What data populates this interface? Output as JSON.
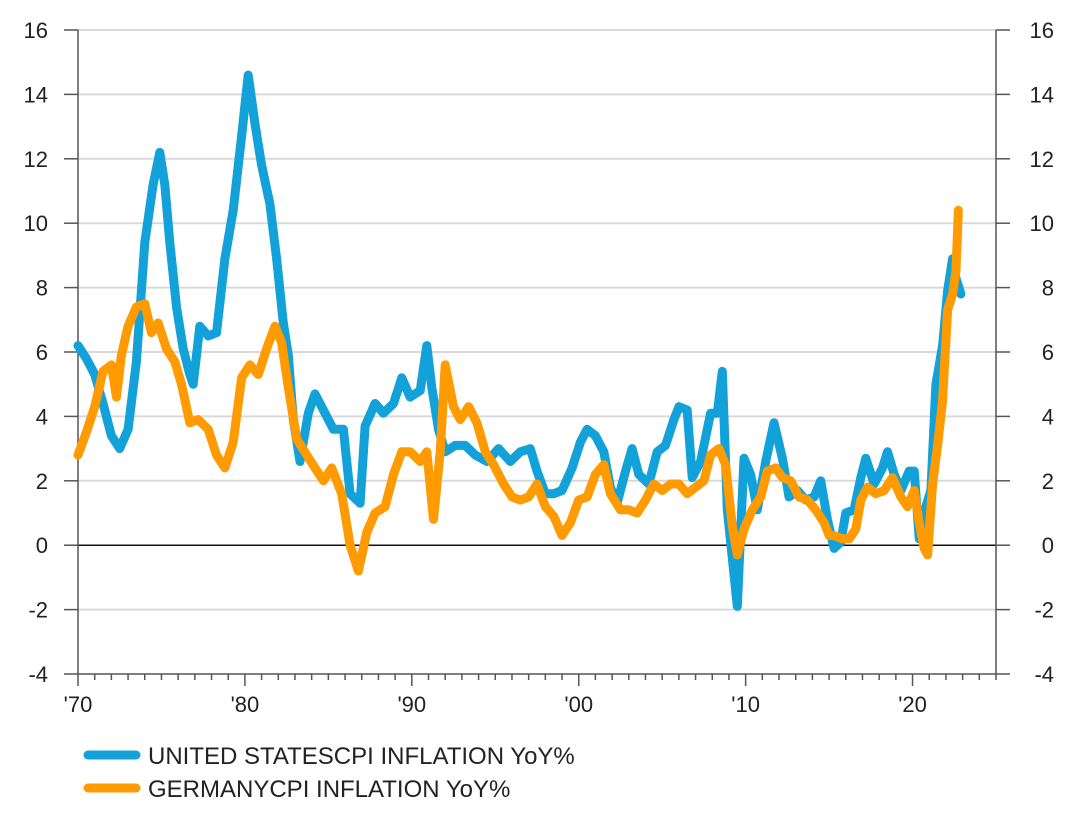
{
  "chart_data": {
    "type": "line",
    "title": "",
    "xlabel": "",
    "ylabel": "",
    "xlim": [
      1970,
      2025
    ],
    "ylim": [
      -4,
      16
    ],
    "x_ticks": [
      {
        "value": 1970,
        "label": "'70"
      },
      {
        "value": 1980,
        "label": "'80"
      },
      {
        "value": 1990,
        "label": "'90"
      },
      {
        "value": 2000,
        "label": "'00"
      },
      {
        "value": 2010,
        "label": "'10"
      },
      {
        "value": 2020,
        "label": "'20"
      }
    ],
    "y_ticks": [
      {
        "value": 16,
        "label": "16"
      },
      {
        "value": 14,
        "label": "14"
      },
      {
        "value": 12,
        "label": "12"
      },
      {
        "value": 10,
        "label": "10"
      },
      {
        "value": 8,
        "label": "8"
      },
      {
        "value": 6,
        "label": "6"
      },
      {
        "value": 4,
        "label": "4"
      },
      {
        "value": 2,
        "label": "2"
      },
      {
        "value": 0,
        "label": "0"
      },
      {
        "value": -2,
        "label": "-2"
      },
      {
        "value": -4,
        "label": "-4"
      }
    ],
    "grid": true,
    "zero_line": true,
    "legend_position": "bottom-left",
    "series": [
      {
        "name": "UNITED STATESCPI INFLATION YoY%",
        "color": "#12a1d8",
        "points": [
          [
            1970.0,
            6.2
          ],
          [
            1970.5,
            5.8
          ],
          [
            1971.0,
            5.3
          ],
          [
            1971.5,
            4.4
          ],
          [
            1972.0,
            3.4
          ],
          [
            1972.5,
            3.0
          ],
          [
            1973.0,
            3.6
          ],
          [
            1973.5,
            5.7
          ],
          [
            1974.0,
            9.4
          ],
          [
            1974.5,
            11.2
          ],
          [
            1974.9,
            12.2
          ],
          [
            1975.2,
            11.2
          ],
          [
            1975.5,
            9.4
          ],
          [
            1975.9,
            7.4
          ],
          [
            1976.3,
            6.1
          ],
          [
            1976.7,
            5.3
          ],
          [
            1976.9,
            5.0
          ],
          [
            1977.3,
            6.8
          ],
          [
            1977.8,
            6.5
          ],
          [
            1978.3,
            6.6
          ],
          [
            1978.8,
            8.9
          ],
          [
            1979.3,
            10.4
          ],
          [
            1979.8,
            12.7
          ],
          [
            1980.2,
            14.6
          ],
          [
            1980.6,
            13.1
          ],
          [
            1981.0,
            11.8
          ],
          [
            1981.5,
            10.6
          ],
          [
            1981.9,
            8.9
          ],
          [
            1982.3,
            6.9
          ],
          [
            1982.6,
            5.9
          ],
          [
            1982.9,
            3.9
          ],
          [
            1983.3,
            2.6
          ],
          [
            1983.8,
            4.1
          ],
          [
            1984.2,
            4.7
          ],
          [
            1984.8,
            4.1
          ],
          [
            1985.3,
            3.6
          ],
          [
            1985.9,
            3.6
          ],
          [
            1986.3,
            1.6
          ],
          [
            1986.9,
            1.3
          ],
          [
            1987.2,
            3.7
          ],
          [
            1987.8,
            4.4
          ],
          [
            1988.3,
            4.1
          ],
          [
            1988.9,
            4.4
          ],
          [
            1989.4,
            5.2
          ],
          [
            1989.9,
            4.6
          ],
          [
            1990.5,
            4.8
          ],
          [
            1990.9,
            6.2
          ],
          [
            1991.2,
            4.9
          ],
          [
            1991.6,
            3.6
          ],
          [
            1992.0,
            2.9
          ],
          [
            1992.6,
            3.1
          ],
          [
            1993.2,
            3.1
          ],
          [
            1993.8,
            2.8
          ],
          [
            1994.5,
            2.6
          ],
          [
            1995.2,
            3.0
          ],
          [
            1995.9,
            2.6
          ],
          [
            1996.5,
            2.9
          ],
          [
            1997.1,
            3.0
          ],
          [
            1997.5,
            2.3
          ],
          [
            1998.0,
            1.6
          ],
          [
            1998.5,
            1.6
          ],
          [
            1999.0,
            1.7
          ],
          [
            1999.6,
            2.4
          ],
          [
            2000.1,
            3.2
          ],
          [
            2000.5,
            3.6
          ],
          [
            2001.0,
            3.4
          ],
          [
            2001.5,
            2.9
          ],
          [
            2001.9,
            1.8
          ],
          [
            2002.3,
            1.3
          ],
          [
            2002.8,
            2.3
          ],
          [
            2003.2,
            3.0
          ],
          [
            2003.6,
            2.2
          ],
          [
            2004.2,
            1.9
          ],
          [
            2004.7,
            2.9
          ],
          [
            2005.2,
            3.1
          ],
          [
            2005.7,
            3.9
          ],
          [
            2006.0,
            4.3
          ],
          [
            2006.5,
            4.2
          ],
          [
            2006.8,
            2.1
          ],
          [
            2007.3,
            2.6
          ],
          [
            2007.9,
            4.1
          ],
          [
            2008.3,
            4.1
          ],
          [
            2008.6,
            5.4
          ],
          [
            2008.9,
            1.1
          ],
          [
            2009.2,
            -0.4
          ],
          [
            2009.5,
            -1.9
          ],
          [
            2009.9,
            2.7
          ],
          [
            2010.3,
            2.2
          ],
          [
            2010.7,
            1.1
          ],
          [
            2011.2,
            2.6
          ],
          [
            2011.7,
            3.8
          ],
          [
            2012.2,
            2.7
          ],
          [
            2012.6,
            1.5
          ],
          [
            2013.1,
            1.7
          ],
          [
            2013.6,
            1.4
          ],
          [
            2014.1,
            1.5
          ],
          [
            2014.5,
            2.0
          ],
          [
            2014.9,
            0.8
          ],
          [
            2015.3,
            -0.1
          ],
          [
            2015.7,
            0.1
          ],
          [
            2016.0,
            1.0
          ],
          [
            2016.5,
            1.1
          ],
          [
            2016.9,
            2.1
          ],
          [
            2017.2,
            2.7
          ],
          [
            2017.7,
            1.9
          ],
          [
            2018.2,
            2.4
          ],
          [
            2018.5,
            2.9
          ],
          [
            2018.9,
            2.2
          ],
          [
            2019.3,
            1.7
          ],
          [
            2019.8,
            2.3
          ],
          [
            2020.1,
            2.3
          ],
          [
            2020.4,
            0.2
          ],
          [
            2020.8,
            1.2
          ],
          [
            2021.1,
            1.7
          ],
          [
            2021.4,
            5.0
          ],
          [
            2021.8,
            6.2
          ],
          [
            2022.1,
            7.9
          ],
          [
            2022.4,
            8.9
          ],
          [
            2022.6,
            8.3
          ],
          [
            2022.9,
            7.8
          ]
        ]
      },
      {
        "name": "GERMANYCPI INFLATION YoY%",
        "color": "#ff9b00",
        "points": [
          [
            1970.0,
            2.8
          ],
          [
            1970.5,
            3.5
          ],
          [
            1971.0,
            4.3
          ],
          [
            1971.5,
            5.4
          ],
          [
            1972.0,
            5.6
          ],
          [
            1972.3,
            4.6
          ],
          [
            1972.6,
            5.9
          ],
          [
            1973.0,
            6.8
          ],
          [
            1973.5,
            7.4
          ],
          [
            1974.0,
            7.5
          ],
          [
            1974.4,
            6.6
          ],
          [
            1974.8,
            6.9
          ],
          [
            1975.3,
            6.1
          ],
          [
            1975.8,
            5.7
          ],
          [
            1976.2,
            5.0
          ],
          [
            1976.7,
            3.8
          ],
          [
            1977.2,
            3.9
          ],
          [
            1977.8,
            3.6
          ],
          [
            1978.3,
            2.8
          ],
          [
            1978.8,
            2.4
          ],
          [
            1979.3,
            3.2
          ],
          [
            1979.8,
            5.2
          ],
          [
            1980.3,
            5.6
          ],
          [
            1980.8,
            5.3
          ],
          [
            1981.3,
            6.1
          ],
          [
            1981.8,
            6.8
          ],
          [
            1982.2,
            6.3
          ],
          [
            1982.6,
            4.9
          ],
          [
            1983.1,
            3.3
          ],
          [
            1983.7,
            2.8
          ],
          [
            1984.2,
            2.4
          ],
          [
            1984.7,
            2.0
          ],
          [
            1985.2,
            2.4
          ],
          [
            1985.8,
            1.6
          ],
          [
            1986.3,
            0.0
          ],
          [
            1986.8,
            -0.8
          ],
          [
            1987.3,
            0.4
          ],
          [
            1987.8,
            1.0
          ],
          [
            1988.4,
            1.2
          ],
          [
            1988.9,
            2.2
          ],
          [
            1989.4,
            2.9
          ],
          [
            1989.9,
            2.9
          ],
          [
            1990.5,
            2.6
          ],
          [
            1990.9,
            2.9
          ],
          [
            1991.3,
            0.8
          ],
          [
            1991.7,
            2.9
          ],
          [
            1992.0,
            5.6
          ],
          [
            1992.5,
            4.3
          ],
          [
            1992.9,
            3.9
          ],
          [
            1993.4,
            4.3
          ],
          [
            1993.9,
            3.8
          ],
          [
            1994.4,
            2.9
          ],
          [
            1994.9,
            2.5
          ],
          [
            1995.5,
            1.9
          ],
          [
            1996.0,
            1.5
          ],
          [
            1996.5,
            1.4
          ],
          [
            1997.0,
            1.5
          ],
          [
            1997.5,
            1.9
          ],
          [
            1998.0,
            1.2
          ],
          [
            1998.5,
            0.9
          ],
          [
            1999.0,
            0.3
          ],
          [
            1999.5,
            0.7
          ],
          [
            2000.0,
            1.4
          ],
          [
            2000.5,
            1.5
          ],
          [
            2001.0,
            2.2
          ],
          [
            2001.5,
            2.5
          ],
          [
            2001.9,
            1.6
          ],
          [
            2002.5,
            1.1
          ],
          [
            2003.0,
            1.1
          ],
          [
            2003.5,
            1.0
          ],
          [
            2004.0,
            1.4
          ],
          [
            2004.5,
            1.9
          ],
          [
            2005.0,
            1.7
          ],
          [
            2005.5,
            1.9
          ],
          [
            2006.0,
            1.9
          ],
          [
            2006.5,
            1.6
          ],
          [
            2007.0,
            1.8
          ],
          [
            2007.5,
            2.0
          ],
          [
            2007.9,
            2.8
          ],
          [
            2008.4,
            3.0
          ],
          [
            2008.8,
            2.5
          ],
          [
            2009.2,
            0.6
          ],
          [
            2009.5,
            -0.3
          ],
          [
            2009.9,
            0.5
          ],
          [
            2010.4,
            1.1
          ],
          [
            2010.9,
            1.5
          ],
          [
            2011.3,
            2.3
          ],
          [
            2011.8,
            2.4
          ],
          [
            2012.2,
            2.1
          ],
          [
            2012.7,
            2.0
          ],
          [
            2013.2,
            1.5
          ],
          [
            2013.7,
            1.4
          ],
          [
            2014.2,
            1.1
          ],
          [
            2014.7,
            0.7
          ],
          [
            2015.0,
            0.3
          ],
          [
            2015.3,
            0.3
          ],
          [
            2015.8,
            0.2
          ],
          [
            2016.2,
            0.2
          ],
          [
            2016.6,
            0.5
          ],
          [
            2016.9,
            1.4
          ],
          [
            2017.3,
            1.8
          ],
          [
            2017.8,
            1.6
          ],
          [
            2018.3,
            1.7
          ],
          [
            2018.8,
            2.1
          ],
          [
            2019.3,
            1.5
          ],
          [
            2019.7,
            1.2
          ],
          [
            2020.1,
            1.7
          ],
          [
            2020.4,
            0.7
          ],
          [
            2020.7,
            -0.1
          ],
          [
            2020.9,
            -0.3
          ],
          [
            2021.2,
            1.9
          ],
          [
            2021.5,
            3.1
          ],
          [
            2021.8,
            4.5
          ],
          [
            2022.1,
            7.3
          ],
          [
            2022.4,
            7.8
          ],
          [
            2022.6,
            8.5
          ],
          [
            2022.75,
            10.4
          ]
        ]
      }
    ]
  }
}
